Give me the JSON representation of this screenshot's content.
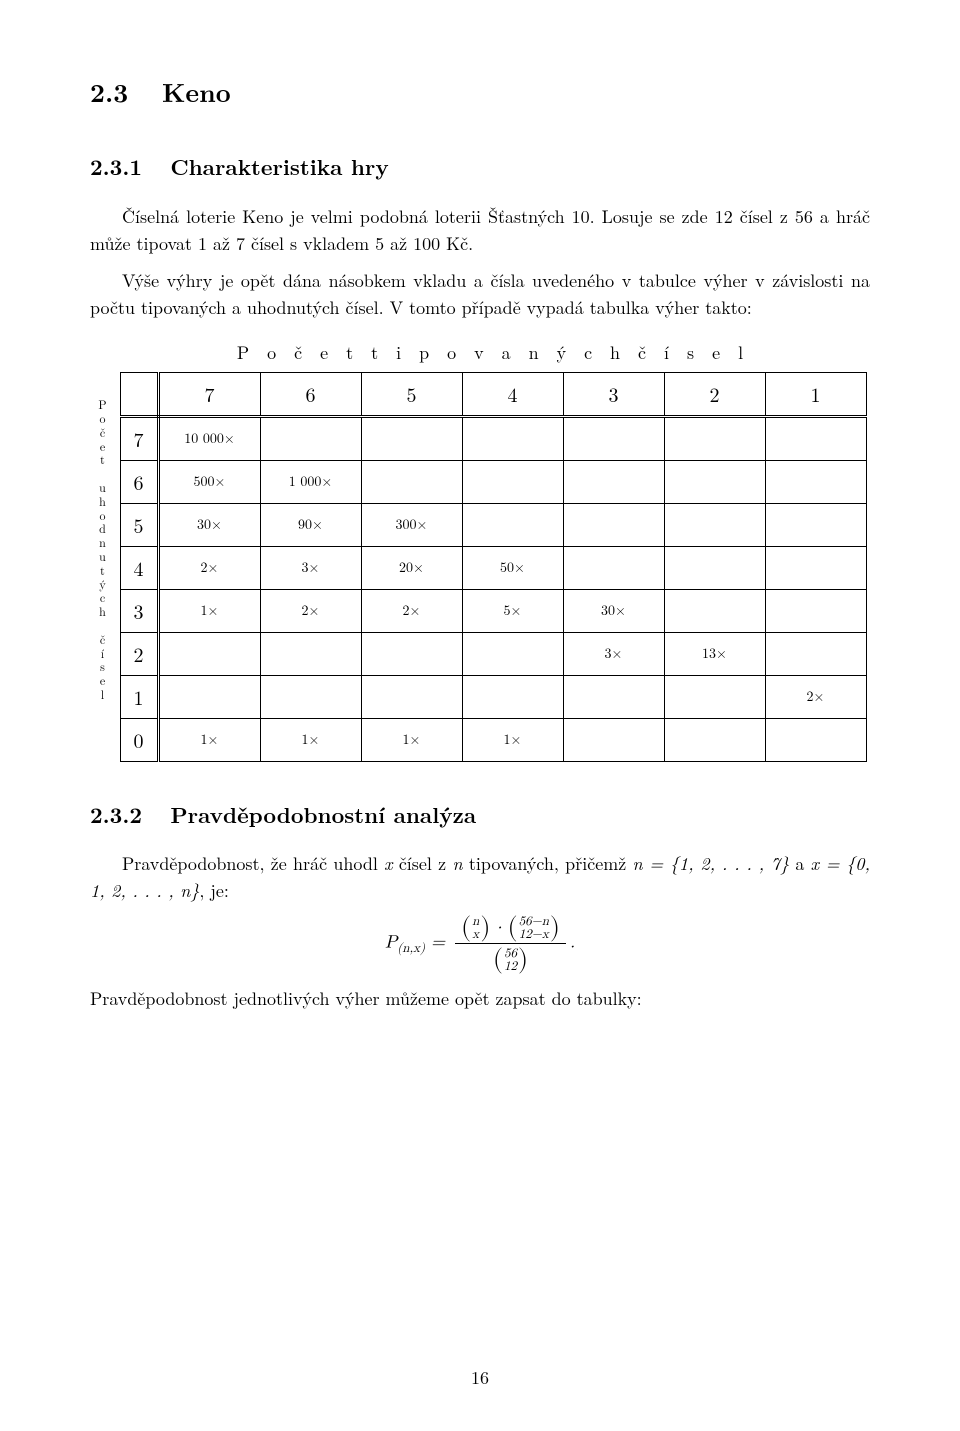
{
  "section": {
    "num": "2.3",
    "title": "Keno"
  },
  "subsection1": {
    "num": "2.3.1",
    "title": "Charakteristika hry"
  },
  "subsection2": {
    "num": "2.3.2",
    "title": "Pravděpodobnostní analýza"
  },
  "para1": "Číselná loterie Keno je velmi podobná loterii Šťastných 10. Losuje se zde 12 čísel z 56 a hráč může tipovat 1 až 7 čísel s vkladem 5 až 100 Kč.",
  "para2": "Výše výhry je opět dána násobkem vkladu a čísla uvedeného v tabulce výher v závislosti na počtu tipovaných a uhodnutých čísel. V tomto případě vypadá tabulka výher takto:",
  "table": {
    "hlabel": "P o č e t   t i p o v a n ý c h   č í s e l",
    "vlabel": "Počet uhodnutých čísel",
    "col_headers": [
      "7",
      "6",
      "5",
      "4",
      "3",
      "2",
      "1"
    ],
    "row_headers": [
      "7",
      "6",
      "5",
      "4",
      "3",
      "2",
      "1",
      "0"
    ],
    "rows": [
      [
        "10 000×",
        "",
        "",
        "",
        "",
        "",
        ""
      ],
      [
        "500×",
        "1 000×",
        "",
        "",
        "",
        "",
        ""
      ],
      [
        "30×",
        "90×",
        "300×",
        "",
        "",
        "",
        ""
      ],
      [
        "2×",
        "3×",
        "20×",
        "50×",
        "",
        "",
        ""
      ],
      [
        "1×",
        "2×",
        "2×",
        "5×",
        "30×",
        "",
        ""
      ],
      [
        "",
        "",
        "",
        "",
        "3×",
        "13×",
        ""
      ],
      [
        "",
        "",
        "",
        "",
        "",
        "",
        "2×"
      ],
      [
        "1×",
        "1×",
        "1×",
        "1×",
        "",
        "",
        ""
      ]
    ]
  },
  "para3_part1": "Pravděpodobnost, že hráč uhodl ",
  "para3_part2": " čísel z ",
  "para3_part3": " tipovaných, přičemž ",
  "para3_set_n": "n = {1, 2, . . . , 7}",
  "para3_part4": " a ",
  "para3_set_x": "x = {0, 1, 2, . . . , n}",
  "para3_part5": ", je:",
  "formula": {
    "lhs": "P",
    "sub": "(n,x)",
    "eq": " = ",
    "num_b1_top": "n",
    "num_b1_bot": "x",
    "num_dot": " · ",
    "num_b2_top": "56−n",
    "num_b2_bot": "12−x",
    "den_top": "56",
    "den_bot": "12",
    "tail": "."
  },
  "para4": "Pravděpodobnost jednotlivých výher můžeme opět zapsat do tabulky:",
  "page_number": "16"
}
